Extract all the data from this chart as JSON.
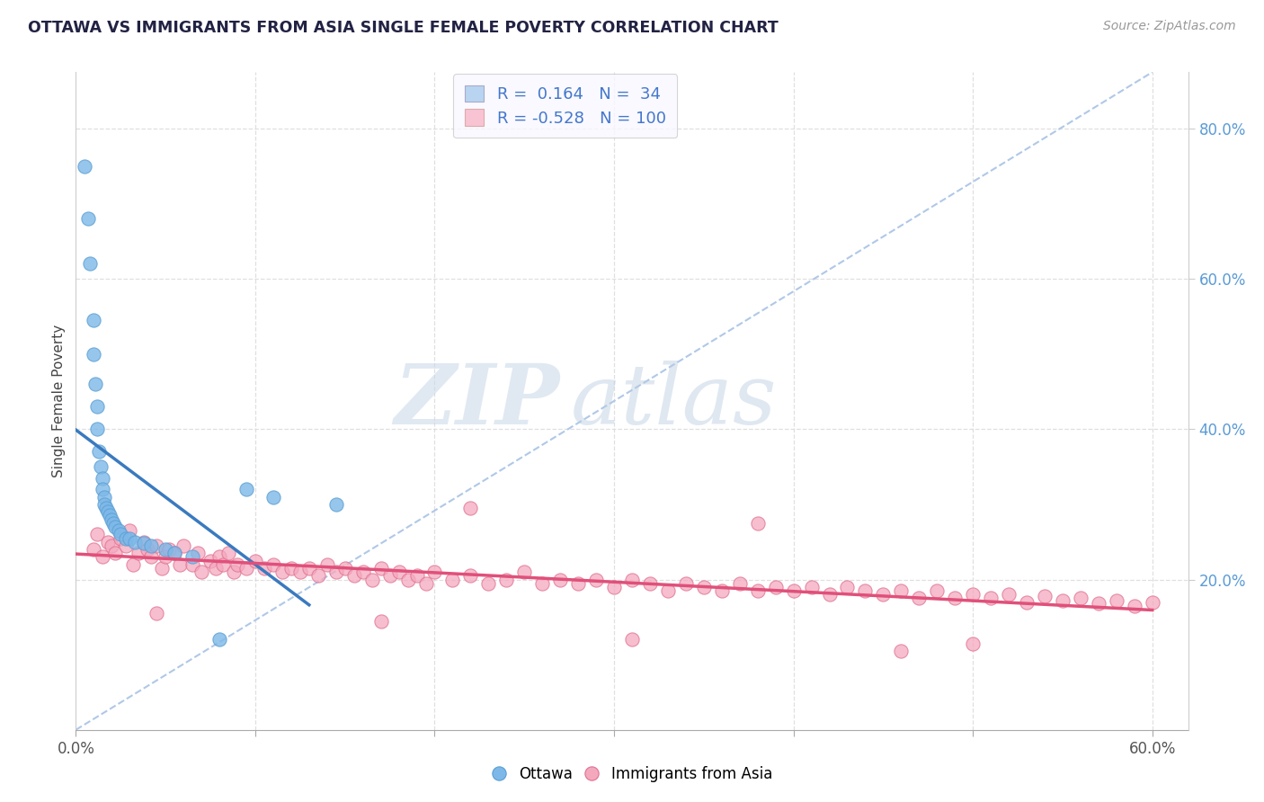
{
  "title": "OTTAWA VS IMMIGRANTS FROM ASIA SINGLE FEMALE POVERTY CORRELATION CHART",
  "source": "Source: ZipAtlas.com",
  "ylabel": "Single Female Poverty",
  "xlim": [
    0.0,
    0.62
  ],
  "ylim": [
    0.0,
    0.875
  ],
  "watermark_zip": "ZIP",
  "watermark_atlas": "atlas",
  "blue_color": "#7db8e8",
  "blue_edge": "#5a9fd4",
  "pink_color": "#f4a8be",
  "pink_edge": "#e07090",
  "blue_trend_color": "#3a7abf",
  "pink_trend_color": "#e0507a",
  "dashed_color": "#b0c8e8",
  "grid_color": "#d8d8d8",
  "background_color": "#ffffff",
  "title_color": "#222244",
  "source_color": "#999999",
  "axis_label_color": "#444444",
  "right_tick_color": "#5b9bd5",
  "ottawa_x": [
    0.005,
    0.007,
    0.008,
    0.01,
    0.01,
    0.011,
    0.012,
    0.012,
    0.013,
    0.014,
    0.015,
    0.015,
    0.016,
    0.016,
    0.017,
    0.018,
    0.019,
    0.02,
    0.021,
    0.022,
    0.024,
    0.025,
    0.028,
    0.03,
    0.033,
    0.038,
    0.042,
    0.05,
    0.055,
    0.065,
    0.08,
    0.095,
    0.11,
    0.145
  ],
  "ottawa_y": [
    0.75,
    0.68,
    0.62,
    0.545,
    0.5,
    0.46,
    0.43,
    0.4,
    0.37,
    0.35,
    0.335,
    0.32,
    0.31,
    0.3,
    0.295,
    0.29,
    0.285,
    0.28,
    0.275,
    0.27,
    0.265,
    0.26,
    0.255,
    0.255,
    0.25,
    0.248,
    0.245,
    0.24,
    0.235,
    0.23,
    0.12,
    0.32,
    0.31,
    0.3
  ],
  "asia_x": [
    0.01,
    0.012,
    0.015,
    0.018,
    0.02,
    0.022,
    0.025,
    0.028,
    0.03,
    0.032,
    0.035,
    0.038,
    0.04,
    0.042,
    0.045,
    0.048,
    0.05,
    0.052,
    0.055,
    0.058,
    0.06,
    0.065,
    0.068,
    0.07,
    0.075,
    0.078,
    0.08,
    0.082,
    0.085,
    0.088,
    0.09,
    0.095,
    0.1,
    0.105,
    0.11,
    0.115,
    0.12,
    0.125,
    0.13,
    0.135,
    0.14,
    0.145,
    0.15,
    0.155,
    0.16,
    0.165,
    0.17,
    0.175,
    0.18,
    0.185,
    0.19,
    0.195,
    0.2,
    0.21,
    0.22,
    0.23,
    0.24,
    0.25,
    0.26,
    0.27,
    0.28,
    0.29,
    0.3,
    0.31,
    0.32,
    0.33,
    0.34,
    0.35,
    0.36,
    0.37,
    0.38,
    0.39,
    0.4,
    0.41,
    0.42,
    0.43,
    0.44,
    0.45,
    0.46,
    0.47,
    0.48,
    0.49,
    0.5,
    0.51,
    0.52,
    0.53,
    0.54,
    0.55,
    0.56,
    0.57,
    0.58,
    0.59,
    0.6,
    0.22,
    0.38,
    0.5,
    0.045,
    0.17,
    0.31,
    0.46
  ],
  "asia_y": [
    0.24,
    0.26,
    0.23,
    0.25,
    0.245,
    0.235,
    0.255,
    0.245,
    0.265,
    0.22,
    0.235,
    0.25,
    0.24,
    0.23,
    0.245,
    0.215,
    0.23,
    0.24,
    0.235,
    0.22,
    0.245,
    0.22,
    0.235,
    0.21,
    0.225,
    0.215,
    0.23,
    0.22,
    0.235,
    0.21,
    0.22,
    0.215,
    0.225,
    0.215,
    0.22,
    0.21,
    0.215,
    0.21,
    0.215,
    0.205,
    0.22,
    0.21,
    0.215,
    0.205,
    0.21,
    0.2,
    0.215,
    0.205,
    0.21,
    0.2,
    0.205,
    0.195,
    0.21,
    0.2,
    0.205,
    0.195,
    0.2,
    0.21,
    0.195,
    0.2,
    0.195,
    0.2,
    0.19,
    0.2,
    0.195,
    0.185,
    0.195,
    0.19,
    0.185,
    0.195,
    0.185,
    0.19,
    0.185,
    0.19,
    0.18,
    0.19,
    0.185,
    0.18,
    0.185,
    0.175,
    0.185,
    0.175,
    0.18,
    0.175,
    0.18,
    0.17,
    0.178,
    0.172,
    0.175,
    0.168,
    0.172,
    0.165,
    0.17,
    0.295,
    0.275,
    0.115,
    0.155,
    0.145,
    0.12,
    0.105
  ],
  "legend_line1": "R =  0.164   N =  34",
  "legend_line2": "R = -0.528   N = 100"
}
